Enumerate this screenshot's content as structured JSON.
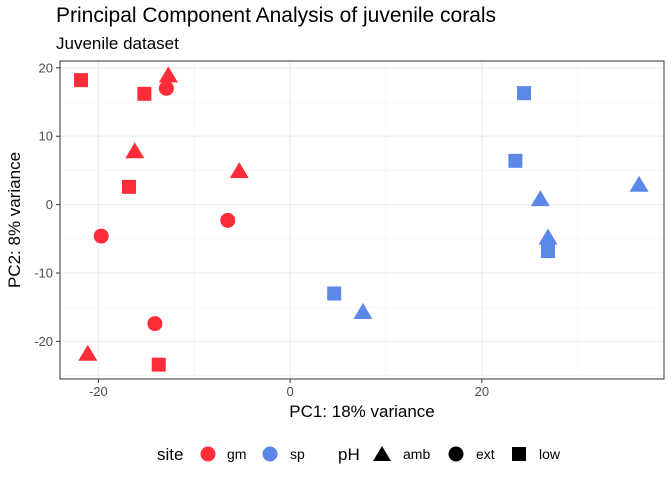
{
  "chart_data": {
    "type": "scatter",
    "title": "Principal Component Analysis of juvenile corals",
    "subtitle": "Juvenile dataset",
    "xlabel": "PC1: 18% variance",
    "ylabel": "PC2: 8% variance",
    "xlim": [
      -24,
      39
    ],
    "ylim": [
      -25.5,
      21
    ],
    "x_ticks": [
      -20,
      0,
      20
    ],
    "y_ticks": [
      -20,
      -10,
      0,
      10,
      20
    ],
    "grid": true,
    "legend_position": "bottom",
    "colors": {
      "gm": "#FF2D3A",
      "sp": "#5B87E8"
    },
    "legends": {
      "site": {
        "title": "site",
        "items": [
          "gm",
          "sp"
        ]
      },
      "pH": {
        "title": "pH",
        "items": [
          "amb",
          "ext",
          "low"
        ]
      }
    },
    "points": [
      {
        "x": -21.8,
        "y": 18.2,
        "site": "gm",
        "pH": "low"
      },
      {
        "x": -12.7,
        "y": 18.9,
        "site": "gm",
        "pH": "amb"
      },
      {
        "x": -12.9,
        "y": 17.0,
        "site": "gm",
        "pH": "ext"
      },
      {
        "x": -15.2,
        "y": 16.2,
        "site": "gm",
        "pH": "low"
      },
      {
        "x": -16.2,
        "y": 7.8,
        "site": "gm",
        "pH": "amb"
      },
      {
        "x": -5.3,
        "y": 4.9,
        "site": "gm",
        "pH": "amb"
      },
      {
        "x": -16.8,
        "y": 2.6,
        "site": "gm",
        "pH": "low"
      },
      {
        "x": -6.5,
        "y": -2.3,
        "site": "gm",
        "pH": "ext"
      },
      {
        "x": -19.7,
        "y": -4.6,
        "site": "gm",
        "pH": "ext"
      },
      {
        "x": -14.1,
        "y": -17.4,
        "site": "gm",
        "pH": "ext"
      },
      {
        "x": -21.1,
        "y": -21.8,
        "site": "gm",
        "pH": "amb"
      },
      {
        "x": -13.7,
        "y": -23.4,
        "site": "gm",
        "pH": "low"
      },
      {
        "x": 24.4,
        "y": 16.3,
        "site": "sp",
        "pH": "low"
      },
      {
        "x": 23.5,
        "y": 6.4,
        "site": "sp",
        "pH": "low"
      },
      {
        "x": 36.4,
        "y": 2.9,
        "site": "sp",
        "pH": "amb"
      },
      {
        "x": 26.1,
        "y": 0.8,
        "site": "sp",
        "pH": "amb"
      },
      {
        "x": 26.9,
        "y": -4.8,
        "site": "sp",
        "pH": "amb"
      },
      {
        "x": 26.9,
        "y": -6.8,
        "site": "sp",
        "pH": "low"
      },
      {
        "x": 4.6,
        "y": -13.0,
        "site": "sp",
        "pH": "low"
      },
      {
        "x": 7.6,
        "y": -15.7,
        "site": "sp",
        "pH": "amb"
      }
    ]
  }
}
